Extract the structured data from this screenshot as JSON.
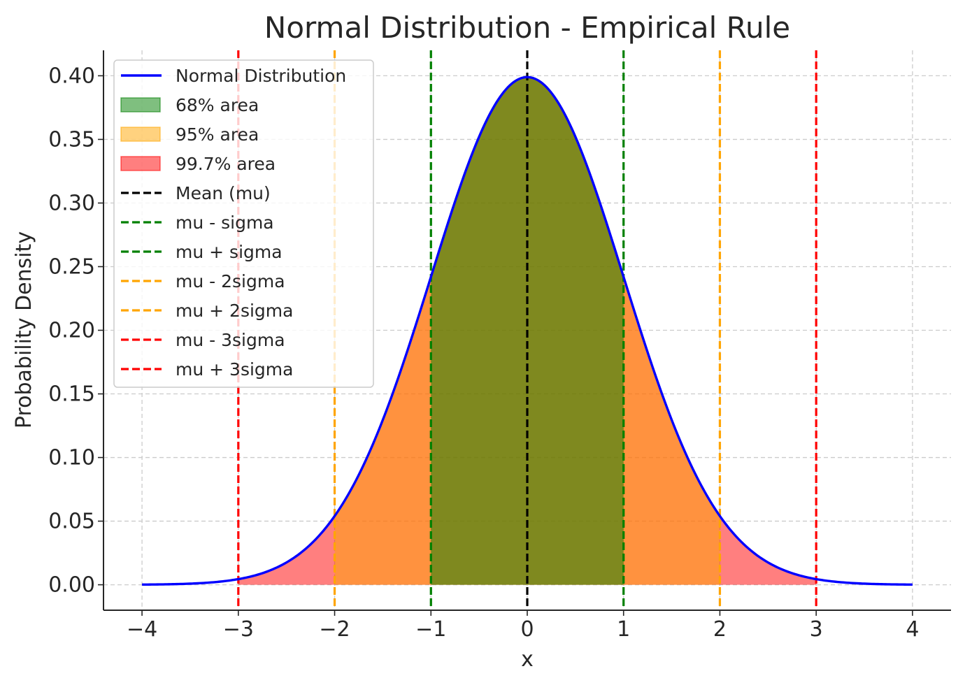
{
  "chart_data": {
    "type": "area",
    "title": "Normal Distribution - Empirical Rule",
    "xlabel": "x",
    "ylabel": "Probability Density",
    "xlim": [
      -4.4,
      4.4
    ],
    "ylim": [
      -0.02,
      0.42
    ],
    "grid": true,
    "legend_position": "top-left",
    "x_ticks": [
      -4,
      -3,
      -2,
      -1,
      0,
      1,
      2,
      3,
      4
    ],
    "x_tick_labels": [
      "−4",
      "−3",
      "−2",
      "−1",
      "0",
      "1",
      "2",
      "3",
      "4"
    ],
    "y_ticks": [
      0.0,
      0.05,
      0.1,
      0.15,
      0.2,
      0.25,
      0.3,
      0.35,
      0.4
    ],
    "y_tick_labels": [
      "0.00",
      "0.05",
      "0.10",
      "0.15",
      "0.20",
      "0.25",
      "0.30",
      "0.35",
      "0.40"
    ],
    "curve": {
      "name": "Normal Distribution",
      "color": "#0000ff",
      "mu": 0,
      "sigma": 1,
      "x_range": [
        -4,
        4
      ]
    },
    "areas": [
      {
        "name": "99.7% area",
        "from": -3,
        "to": 3,
        "color": "#ff0000",
        "opacity": 0.5
      },
      {
        "name": "95% area",
        "from": -2,
        "to": 2,
        "color": "#ffa500",
        "opacity": 0.5
      },
      {
        "name": "68% area",
        "from": -1,
        "to": 1,
        "color": "#008000",
        "opacity": 0.5
      }
    ],
    "vlines": [
      {
        "name": "Mean (mu)",
        "x": 0,
        "color": "#000000"
      },
      {
        "name": "mu - sigma",
        "x": -1,
        "color": "#008000"
      },
      {
        "name": "mu + sigma",
        "x": 1,
        "color": "#008000"
      },
      {
        "name": "mu - 2sigma",
        "x": -2,
        "color": "#ffa500"
      },
      {
        "name": "mu + 2sigma",
        "x": 2,
        "color": "#ffa500"
      },
      {
        "name": "mu - 3sigma",
        "x": -3,
        "color": "#ff0000"
      },
      {
        "name": "mu + 3sigma",
        "x": 3,
        "color": "#ff0000"
      }
    ],
    "legend": [
      {
        "label": "Normal Distribution",
        "kind": "line",
        "color": "#0000ff"
      },
      {
        "label": "68% area",
        "kind": "patch",
        "color": "#008000"
      },
      {
        "label": "95% area",
        "kind": "patch",
        "color": "#ffa500"
      },
      {
        "label": "99.7% area",
        "kind": "patch",
        "color": "#ff0000"
      },
      {
        "label": "Mean (mu)",
        "kind": "dash",
        "color": "#000000"
      },
      {
        "label": "mu - sigma",
        "kind": "dash",
        "color": "#008000"
      },
      {
        "label": "mu + sigma",
        "kind": "dash",
        "color": "#008000"
      },
      {
        "label": "mu - 2sigma",
        "kind": "dash",
        "color": "#ffa500"
      },
      {
        "label": "mu + 2sigma",
        "kind": "dash",
        "color": "#ffa500"
      },
      {
        "label": "mu - 3sigma",
        "kind": "dash",
        "color": "#ff0000"
      },
      {
        "label": "mu + 3sigma",
        "kind": "dash",
        "color": "#ff0000"
      }
    ]
  }
}
